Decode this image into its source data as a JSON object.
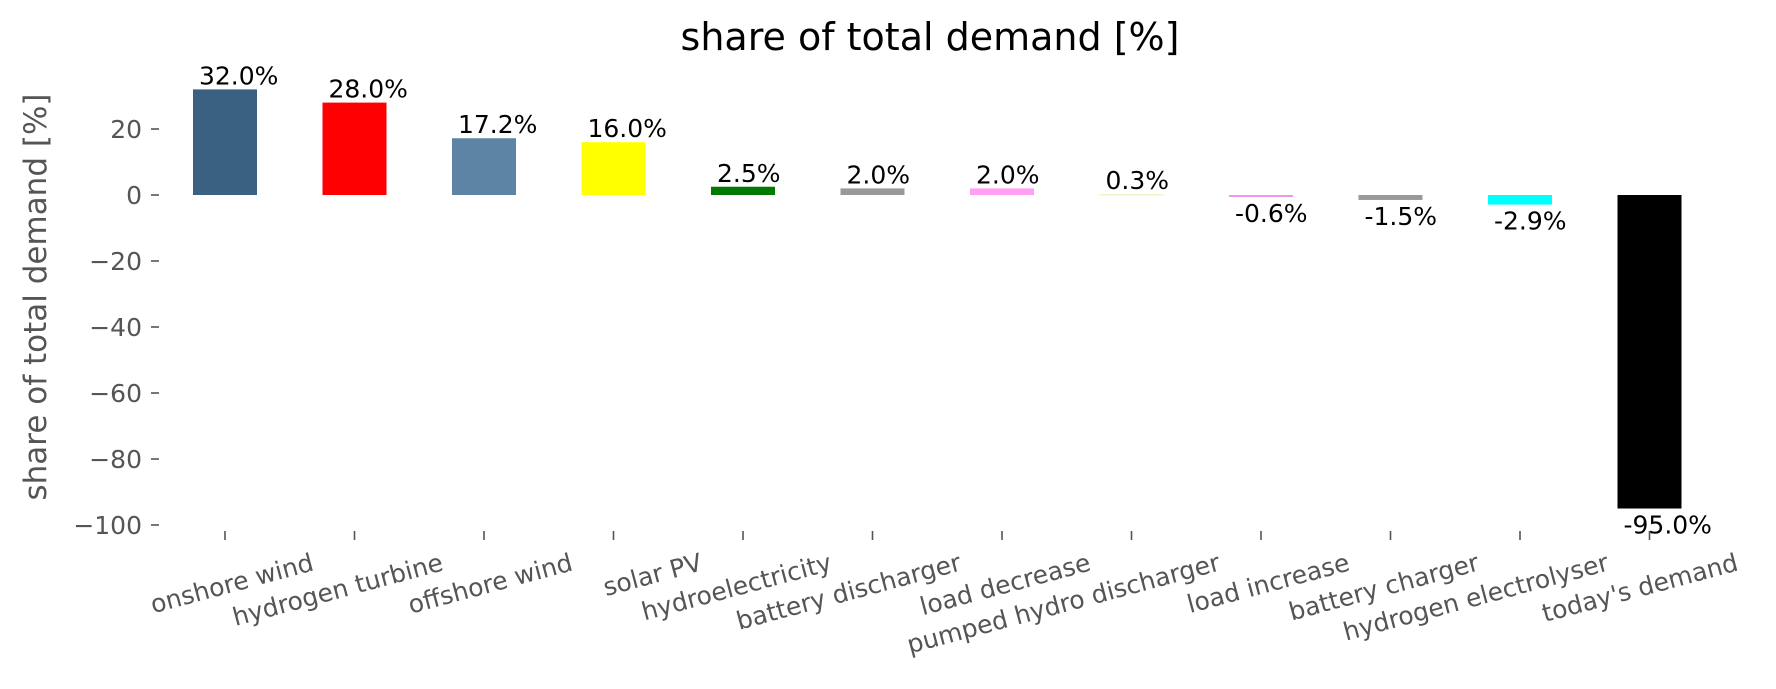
{
  "chart_data": {
    "type": "bar",
    "title": "share of total demand [%]",
    "xlabel": "",
    "ylabel": "share of total demand [%]",
    "ylim": [
      -100,
      35
    ],
    "yticks": [
      20,
      0,
      -20,
      -40,
      -60,
      -80,
      -100
    ],
    "ytick_labels": [
      "20",
      "0",
      "−20",
      "−40",
      "−60",
      "−80",
      "−100"
    ],
    "grid": false,
    "categories": [
      "onshore wind",
      "hydrogen turbine",
      "offshore wind",
      "solar PV",
      "hydroelectricity",
      "battery discharger",
      "load decrease",
      "pumped hydro discharger",
      "load increase",
      "battery charger",
      "hydrogen electrolyser",
      "today's demand"
    ],
    "values": [
      32.0,
      28.0,
      17.2,
      16.0,
      2.5,
      2.0,
      2.0,
      0.3,
      -0.6,
      -1.5,
      -2.9,
      -95.0
    ],
    "data_labels": [
      "32.0%",
      "28.0%",
      "17.2%",
      "16.0%",
      "2.5%",
      "2.0%",
      "2.0%",
      "0.3%",
      "-0.6%",
      "-1.5%",
      "-2.9%",
      "-95.0%"
    ],
    "colors": [
      "#3b6182",
      "#ff0000",
      "#5d83a5",
      "#ffff00",
      "#007a00",
      "#999999",
      "#ffa0f5",
      "#f2f2c8",
      "#ee96ee",
      "#999999",
      "#00ffff",
      "#000000"
    ]
  }
}
